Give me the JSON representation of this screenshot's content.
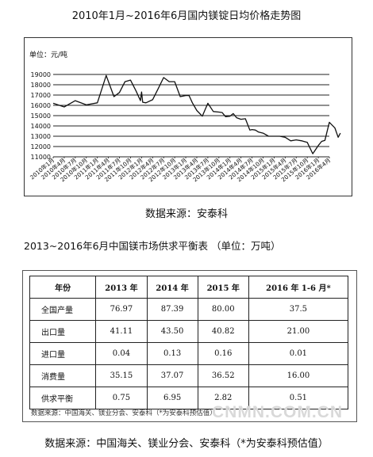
{
  "chart_title": "2010年1月~2016年6月国内镁锭日均价格走势图",
  "chart_data": {
    "type": "line",
    "unit_label": "单位：元/吨",
    "ylim": [
      11000,
      19000
    ],
    "yticks": [
      11000,
      12000,
      13000,
      14000,
      15000,
      16000,
      17000,
      18000,
      19000
    ],
    "xticks": [
      "2010年1月",
      "2010年4月",
      "2010年7月",
      "2010年10月",
      "2011年1月",
      "2011年4月",
      "2011年7月",
      "2011年10月",
      "2012年1月",
      "2012年4月",
      "2012年7月",
      "2012年10月",
      "2013年1月",
      "2013年4月",
      "2013年7月",
      "2013年10月",
      "2014年1月",
      "2014年4月",
      "2014年7月",
      "2014年10月",
      "2015年1月",
      "2015年4月",
      "2015年7月",
      "2015年10月",
      "2016年1月",
      "2016年4月"
    ],
    "grid": true,
    "series": [
      {
        "x_index": [
          0,
          1,
          2,
          3,
          4,
          4.8,
          5.5,
          6,
          6.5,
          7,
          7.5,
          7.9,
          8,
          8.1,
          8.4,
          9,
          9.5,
          10,
          10.5,
          11,
          11.5,
          12,
          12.3,
          12.6,
          13,
          13.5,
          14,
          14.5,
          15,
          15.3,
          15.6,
          16,
          16.3,
          16.6,
          17,
          17.4,
          17.8,
          18,
          18.3,
          18.6,
          19,
          19.5,
          20,
          20.5,
          21,
          21.5,
          22,
          22.5,
          23,
          23.5,
          24,
          24.3,
          24.6,
          25,
          25.5,
          25.8,
          26
        ],
        "values": [
          16200,
          15850,
          16450,
          16050,
          16250,
          18900,
          16850,
          17250,
          18300,
          18450,
          17400,
          16450,
          17300,
          16300,
          16250,
          16550,
          17600,
          18700,
          18300,
          18300,
          16850,
          16950,
          16950,
          16250,
          15500,
          14950,
          16200,
          15400,
          15350,
          15300,
          14900,
          14950,
          15200,
          14800,
          14650,
          14700,
          13600,
          13650,
          13600,
          13400,
          13300,
          13000,
          13000,
          13000,
          12900,
          12550,
          12650,
          12550,
          12400,
          11300,
          12100,
          12500,
          12600,
          14350,
          13800,
          12900,
          13300
        ]
      }
    ]
  },
  "source_line_1": "数据来源：安泰科",
  "table_title": "2013~2016年6月中国镁市场供求平衡表  （单位：万吨）",
  "table": {
    "headers": [
      "年份",
      "2013 年",
      "2014 年",
      "2015 年",
      "2016 年 1-6 月*"
    ],
    "rows": [
      [
        "全国产量",
        "76.97",
        "87.39",
        "80.00",
        "37.5"
      ],
      [
        "出口量",
        "41.11",
        "43.50",
        "40.82",
        "21.00"
      ],
      [
        "进口量",
        "0.04",
        "0.13",
        "0.16",
        "0.01"
      ],
      [
        "消费量",
        "35.15",
        "37.07",
        "36.52",
        "16.00"
      ],
      [
        "供求平衡",
        "0.75",
        "6.95",
        "2.82",
        "0.51"
      ]
    ],
    "note": "数据来源：中国海关、镁业分会、安泰科（*为安泰科预估值）"
  },
  "watermark": "CNMN.COM.CN",
  "source_line_2": "数据来源：中国海关、镁业分会、安泰科（*为安泰科预估值）"
}
